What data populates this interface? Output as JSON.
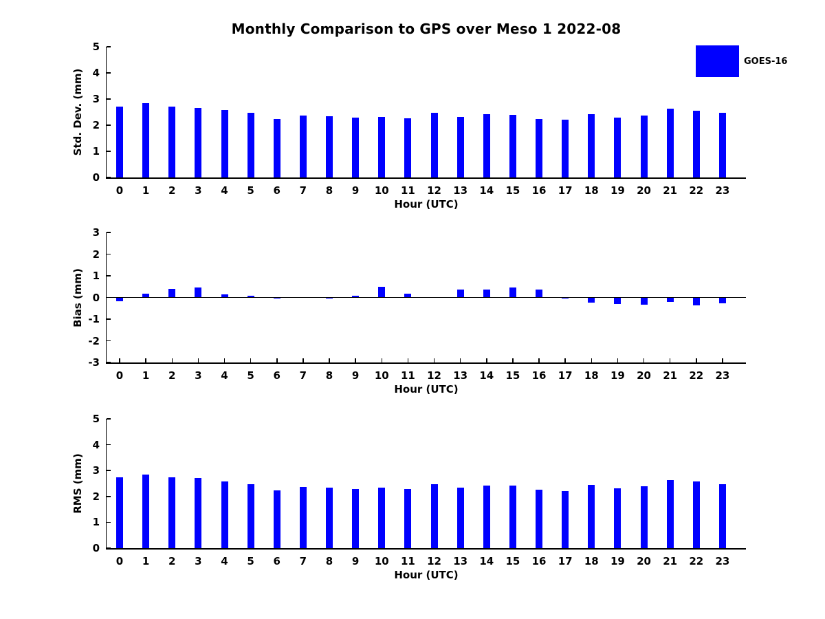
{
  "figure": {
    "title": "Monthly Comparison to GPS over Meso 1 2022-08",
    "background": "#ffffff",
    "text_color": "#000000",
    "legend": {
      "label": "GOES-16",
      "swatch_color": "#0000ff",
      "position": "top-right"
    }
  },
  "chart_data": [
    {
      "type": "bar",
      "name": "std-dev",
      "series_name": "GOES-16",
      "categories": [
        "0",
        "1",
        "2",
        "3",
        "4",
        "5",
        "6",
        "7",
        "8",
        "9",
        "10",
        "11",
        "12",
        "13",
        "14",
        "15",
        "16",
        "17",
        "18",
        "19",
        "20",
        "21",
        "22",
        "23"
      ],
      "values": [
        2.72,
        2.83,
        2.72,
        2.67,
        2.57,
        2.48,
        2.23,
        2.36,
        2.33,
        2.3,
        2.31,
        2.27,
        2.48,
        2.31,
        2.42,
        2.39,
        2.24,
        2.2,
        2.42,
        2.29,
        2.36,
        2.62,
        2.54,
        2.47
      ],
      "xlabel": "Hour (UTC)",
      "ylabel": "Std. Dev. (mm)",
      "ylim": [
        0,
        5
      ],
      "yticks": [
        "0",
        "1",
        "2",
        "3",
        "4",
        "5"
      ],
      "bar_color": "#0000ff",
      "grid": false
    },
    {
      "type": "bar",
      "name": "bias",
      "series_name": "GOES-16",
      "categories": [
        "0",
        "1",
        "2",
        "3",
        "4",
        "5",
        "6",
        "7",
        "8",
        "9",
        "10",
        "11",
        "12",
        "13",
        "14",
        "15",
        "16",
        "17",
        "18",
        "19",
        "20",
        "21",
        "22",
        "23"
      ],
      "values": [
        -0.16,
        0.18,
        0.4,
        0.45,
        0.15,
        0.08,
        -0.04,
        0.0,
        -0.04,
        0.08,
        0.48,
        0.18,
        0.0,
        0.36,
        0.35,
        0.47,
        0.35,
        -0.02,
        -0.25,
        -0.3,
        -0.34,
        -0.21,
        -0.38,
        -0.28
      ],
      "xlabel": "Hour (UTC)",
      "ylabel": "Bias (mm)",
      "ylim": [
        -3,
        3
      ],
      "yticks": [
        "-3",
        "-2",
        "-1",
        "0",
        "1",
        "2",
        "3"
      ],
      "bar_color": "#0000ff",
      "grid": false
    },
    {
      "type": "bar",
      "name": "rms",
      "series_name": "GOES-16",
      "categories": [
        "0",
        "1",
        "2",
        "3",
        "4",
        "5",
        "6",
        "7",
        "8",
        "9",
        "10",
        "11",
        "12",
        "13",
        "14",
        "15",
        "16",
        "17",
        "18",
        "19",
        "20",
        "21",
        "22",
        "23"
      ],
      "values": [
        2.73,
        2.84,
        2.74,
        2.7,
        2.57,
        2.47,
        2.23,
        2.36,
        2.33,
        2.3,
        2.35,
        2.28,
        2.48,
        2.33,
        2.42,
        2.41,
        2.27,
        2.2,
        2.44,
        2.32,
        2.4,
        2.64,
        2.57,
        2.48
      ],
      "xlabel": "Hour (UTC)",
      "ylabel": "RMS (mm)",
      "ylim": [
        0,
        5
      ],
      "yticks": [
        "0",
        "1",
        "2",
        "3",
        "4",
        "5"
      ],
      "bar_color": "#0000ff",
      "grid": false
    }
  ]
}
